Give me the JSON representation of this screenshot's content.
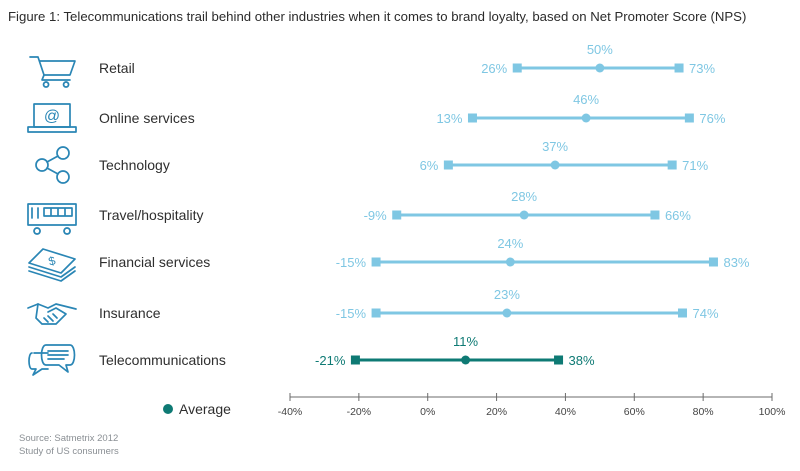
{
  "title": "Figure 1: Telecommunications trail behind other industries when it comes to brand loyalty, based on Net Promoter Score (NPS)",
  "legend": {
    "label": "Average"
  },
  "source": [
    "Source: Satmetrix 2012",
    "Study of US consumers"
  ],
  "colors": {
    "light": "#7fc7e3",
    "dark": "#0e7a74",
    "icon": "#2a86b5",
    "axis": "#6b6b6b"
  },
  "chart_data": {
    "type": "range",
    "xlim": [
      -40,
      100
    ],
    "x_ticks": [
      "-40%",
      "-20%",
      "0%",
      "20%",
      "40%",
      "60%",
      "80%",
      "100%"
    ],
    "x_tick_values": [
      -40,
      -20,
      0,
      20,
      40,
      60,
      80,
      100
    ],
    "categories": [
      {
        "name": "Retail",
        "icon": "shopping-cart-icon",
        "min": 26,
        "avg": 50,
        "max": 73,
        "min_label": "26%",
        "avg_label": "50%",
        "max_label": "73%",
        "highlight": false
      },
      {
        "name": "Online services",
        "icon": "laptop-at-icon",
        "min": 13,
        "avg": 46,
        "max": 76,
        "min_label": "13%",
        "avg_label": "46%",
        "max_label": "76%",
        "highlight": false
      },
      {
        "name": "Technology",
        "icon": "share-nodes-icon",
        "min": 6,
        "avg": 37,
        "max": 71,
        "min_label": "6%",
        "avg_label": "37%",
        "max_label": "71%",
        "highlight": false
      },
      {
        "name": "Travel/hospitality",
        "icon": "bus-icon",
        "min": -9,
        "avg": 28,
        "max": 66,
        "min_label": "-9%",
        "avg_label": "28%",
        "max_label": "66%",
        "highlight": false
      },
      {
        "name": "Financial services",
        "icon": "money-stack-icon",
        "min": -15,
        "avg": 24,
        "max": 83,
        "min_label": "-15%",
        "avg_label": "24%",
        "max_label": "83%",
        "highlight": false
      },
      {
        "name": "Insurance",
        "icon": "handshake-icon",
        "min": -15,
        "avg": 23,
        "max": 74,
        "min_label": "-15%",
        "avg_label": "23%",
        "max_label": "74%",
        "highlight": false
      },
      {
        "name": "Telecommunications",
        "icon": "chat-bubbles-icon",
        "min": -21,
        "avg": 11,
        "max": 38,
        "min_label": "-21%",
        "avg_label": "11%",
        "max_label": "38%",
        "highlight": true
      }
    ]
  }
}
